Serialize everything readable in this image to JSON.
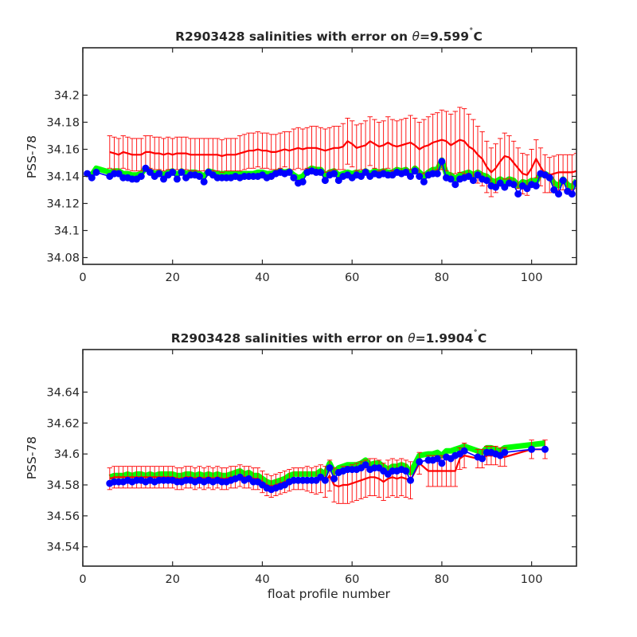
{
  "chart_data": [
    {
      "type": "line",
      "title": "R2903428 salinities with error on θ=9.599˚C",
      "title_parts": {
        "pre": "R2903428 salinities with error on ",
        "theta": "θ",
        "post": "=9.599",
        "deg": "˚",
        "unit": "C"
      },
      "xlabel": "",
      "ylabel": "PSS-78",
      "xlim": [
        0,
        110
      ],
      "ylim": [
        34.075,
        34.235
      ],
      "xticks": [
        0,
        20,
        40,
        60,
        80,
        100
      ],
      "xtick_labels": [
        "0",
        "20",
        "40",
        "60",
        "80",
        "100"
      ],
      "yticks": [
        34.08,
        34.1,
        34.12,
        34.14,
        34.16,
        34.18,
        34.2
      ],
      "ytick_labels": [
        "34.08",
        "34.1",
        "34.12",
        "34.14",
        "34.16",
        "34.18",
        "34.2"
      ],
      "grid": false,
      "colors": {
        "calibrated": "#00ff00",
        "reference": "#ff0000",
        "float": "#0000ff",
        "axis": "#262626"
      },
      "float_x": [
        1,
        2,
        3,
        6,
        7,
        8,
        9,
        10,
        11,
        12,
        13,
        14,
        15,
        16,
        17,
        18,
        19,
        20,
        21,
        22,
        23,
        24,
        25,
        26,
        27,
        28,
        29,
        30,
        31,
        32,
        33,
        34,
        35,
        36,
        37,
        38,
        39,
        40,
        41,
        42,
        43,
        44,
        45,
        46,
        47,
        48,
        49,
        50,
        51,
        52,
        53,
        54,
        55,
        56,
        57,
        58,
        59,
        60,
        61,
        62,
        63,
        64,
        65,
        66,
        67,
        68,
        69,
        70,
        71,
        72,
        73,
        74,
        75,
        76,
        77,
        78,
        79,
        80,
        81,
        82,
        83,
        84,
        85,
        86,
        87,
        88,
        89,
        90,
        91,
        92,
        93,
        94,
        95,
        96,
        97,
        98,
        99,
        100,
        101,
        102,
        103,
        104,
        105,
        106,
        107,
        108,
        109,
        110
      ],
      "float_y": [
        34.142,
        34.139,
        34.143,
        34.14,
        34.142,
        34.142,
        34.139,
        34.139,
        34.138,
        34.138,
        34.14,
        34.146,
        34.143,
        34.14,
        34.142,
        34.138,
        34.141,
        34.143,
        34.138,
        34.143,
        34.139,
        34.141,
        34.141,
        34.14,
        34.136,
        34.143,
        34.141,
        34.139,
        34.139,
        34.139,
        34.139,
        34.14,
        34.139,
        34.14,
        34.14,
        34.14,
        34.14,
        34.141,
        34.139,
        34.14,
        34.142,
        34.143,
        34.142,
        34.143,
        34.139,
        34.135,
        34.136,
        34.143,
        34.144,
        34.143,
        34.143,
        34.137,
        34.141,
        34.142,
        34.137,
        34.14,
        34.141,
        34.139,
        34.141,
        34.14,
        34.143,
        34.14,
        34.142,
        34.141,
        34.142,
        34.141,
        34.141,
        34.143,
        34.142,
        34.143,
        34.14,
        34.144,
        34.14,
        34.136,
        34.141,
        34.142,
        34.142,
        34.151,
        34.139,
        34.138,
        34.134,
        34.138,
        34.139,
        34.14,
        34.137,
        34.141,
        34.138,
        34.137,
        34.133,
        34.132,
        34.135,
        34.132,
        34.135,
        34.134,
        34.127,
        34.133,
        34.131,
        34.134,
        34.133,
        34.142,
        34.141,
        34.139,
        34.13,
        34.127,
        34.137,
        34.129,
        34.127,
        34.135,
        34.138
      ],
      "calibrated_y": [
        34.142,
        34.141,
        34.146,
        34.143,
        34.144,
        34.144,
        34.142,
        34.142,
        34.141,
        34.141,
        34.142,
        34.146,
        34.144,
        34.142,
        34.143,
        34.141,
        34.143,
        34.144,
        34.141,
        34.144,
        34.142,
        34.143,
        34.143,
        34.142,
        34.14,
        34.144,
        34.143,
        34.142,
        34.142,
        34.142,
        34.142,
        34.142,
        34.142,
        34.142,
        34.142,
        34.142,
        34.143,
        34.143,
        34.142,
        34.142,
        34.143,
        34.144,
        34.143,
        34.144,
        34.141,
        34.139,
        34.14,
        34.144,
        34.146,
        34.145,
        34.145,
        34.141,
        34.143,
        34.144,
        34.141,
        34.142,
        34.143,
        34.142,
        34.143,
        34.142,
        34.144,
        34.142,
        34.144,
        34.143,
        34.144,
        34.143,
        34.143,
        34.145,
        34.144,
        34.145,
        34.142,
        34.146,
        34.143,
        34.14,
        34.143,
        34.145,
        34.145,
        34.152,
        34.142,
        34.141,
        34.138,
        34.141,
        34.142,
        34.143,
        34.141,
        34.143,
        34.141,
        34.14,
        34.137,
        34.136,
        34.138,
        34.136,
        34.138,
        34.137,
        34.133,
        34.136,
        34.135,
        34.137,
        34.136,
        34.142,
        34.142,
        34.14,
        34.135,
        34.133,
        34.138,
        34.134,
        34.132,
        34.137,
        34.139
      ],
      "reference_x": [
        6,
        7,
        8,
        9,
        10,
        11,
        12,
        13,
        14,
        15,
        16,
        17,
        18,
        19,
        20,
        21,
        22,
        23,
        24,
        25,
        26,
        27,
        28,
        29,
        30,
        31,
        32,
        33,
        34,
        35,
        36,
        37,
        38,
        39,
        40,
        41,
        42,
        43,
        44,
        45,
        46,
        47,
        48,
        49,
        50,
        51,
        52,
        53,
        54,
        55,
        56,
        57,
        58,
        59,
        60,
        61,
        62,
        63,
        64,
        65,
        66,
        67,
        68,
        69,
        70,
        71,
        72,
        73,
        74,
        75,
        76,
        77,
        78,
        79,
        80,
        81,
        82,
        83,
        84,
        85,
        86,
        87,
        88,
        89,
        90,
        91,
        92,
        93,
        94,
        95,
        96,
        97,
        98,
        99,
        100,
        101,
        102,
        103,
        104,
        105,
        106,
        107,
        108,
        109,
        110
      ],
      "reference_y": [
        34.158,
        34.157,
        34.156,
        34.158,
        34.157,
        34.156,
        34.156,
        34.156,
        34.158,
        34.158,
        34.157,
        34.157,
        34.156,
        34.157,
        34.156,
        34.157,
        34.157,
        34.157,
        34.156,
        34.156,
        34.156,
        34.156,
        34.156,
        34.156,
        34.156,
        34.155,
        34.156,
        34.156,
        34.156,
        34.157,
        34.158,
        34.159,
        34.159,
        34.16,
        34.159,
        34.159,
        34.158,
        34.158,
        34.159,
        34.16,
        34.159,
        34.16,
        34.161,
        34.16,
        34.161,
        34.161,
        34.161,
        34.16,
        34.159,
        34.16,
        34.161,
        34.161,
        34.162,
        34.166,
        34.164,
        34.161,
        34.162,
        34.163,
        34.166,
        34.164,
        34.162,
        34.163,
        34.165,
        34.163,
        34.162,
        34.163,
        34.164,
        34.165,
        34.163,
        34.16,
        34.162,
        34.163,
        34.165,
        34.166,
        34.167,
        34.166,
        34.163,
        34.165,
        34.167,
        34.166,
        34.162,
        34.16,
        34.156,
        34.153,
        34.147,
        34.143,
        34.146,
        34.151,
        34.155,
        34.154,
        34.15,
        34.146,
        34.142,
        34.141,
        34.146,
        34.153,
        34.147,
        34.142,
        34.141,
        34.142,
        34.143,
        34.143,
        34.143,
        34.143,
        34.144
      ],
      "error_halfwidth": [
        0.012,
        0.012,
        0.012,
        0.012,
        0.012,
        0.012,
        0.012,
        0.012,
        0.012,
        0.012,
        0.012,
        0.012,
        0.012,
        0.012,
        0.012,
        0.012,
        0.012,
        0.012,
        0.012,
        0.012,
        0.012,
        0.012,
        0.012,
        0.012,
        0.012,
        0.012,
        0.012,
        0.012,
        0.012,
        0.013,
        0.013,
        0.013,
        0.013,
        0.013,
        0.013,
        0.013,
        0.013,
        0.013,
        0.013,
        0.013,
        0.014,
        0.015,
        0.015,
        0.015,
        0.015,
        0.016,
        0.016,
        0.016,
        0.016,
        0.016,
        0.016,
        0.016,
        0.017,
        0.017,
        0.017,
        0.017,
        0.017,
        0.018,
        0.018,
        0.018,
        0.018,
        0.018,
        0.019,
        0.019,
        0.019,
        0.019,
        0.019,
        0.02,
        0.02,
        0.02,
        0.02,
        0.021,
        0.021,
        0.021,
        0.022,
        0.022,
        0.023,
        0.023,
        0.024,
        0.024,
        0.024,
        0.022,
        0.021,
        0.02,
        0.019,
        0.018,
        0.018,
        0.017,
        0.017,
        0.016,
        0.016,
        0.015,
        0.015,
        0.015,
        0.014,
        0.014,
        0.014,
        0.014,
        0.013,
        0.013,
        0.013,
        0.013,
        0.013,
        0.013,
        0.013
      ]
    },
    {
      "type": "line",
      "title": "R2903428 salinities with error on θ=1.9904˚C",
      "title_parts": {
        "pre": "R2903428 salinities with error on ",
        "theta": "θ",
        "post": "=1.9904",
        "deg": "˚",
        "unit": "C"
      },
      "xlabel": "float profile number",
      "ylabel": "PSS-78",
      "xlim": [
        0,
        110
      ],
      "ylim": [
        34.5275,
        34.6675
      ],
      "xticks": [
        0,
        20,
        40,
        60,
        80,
        100
      ],
      "xtick_labels": [
        "0",
        "20",
        "40",
        "60",
        "80",
        "100"
      ],
      "yticks": [
        34.54,
        34.56,
        34.58,
        34.6,
        34.62,
        34.64
      ],
      "ytick_labels": [
        "34.54",
        "34.56",
        "34.58",
        "34.6",
        "34.62",
        "34.64"
      ],
      "grid": false,
      "colors": {
        "calibrated": "#00ff00",
        "reference": "#ff0000",
        "float": "#0000ff",
        "axis": "#262626"
      },
      "float_x": [
        6,
        7,
        8,
        9,
        10,
        11,
        12,
        13,
        14,
        15,
        16,
        17,
        18,
        19,
        20,
        21,
        22,
        23,
        24,
        25,
        26,
        27,
        28,
        29,
        30,
        31,
        32,
        33,
        34,
        35,
        36,
        37,
        38,
        39,
        40,
        41,
        42,
        43,
        44,
        45,
        46,
        47,
        48,
        49,
        50,
        51,
        52,
        53,
        54,
        55,
        56,
        57,
        58,
        59,
        60,
        61,
        62,
        63,
        64,
        65,
        66,
        67,
        68,
        69,
        70,
        71,
        72,
        73,
        75,
        77,
        78,
        79,
        80,
        81,
        82,
        83,
        84,
        85,
        88,
        89,
        90,
        91,
        92,
        93,
        94,
        100,
        103
      ],
      "float_y": [
        34.581,
        34.582,
        34.582,
        34.582,
        34.583,
        34.582,
        34.583,
        34.583,
        34.582,
        34.583,
        34.582,
        34.583,
        34.583,
        34.583,
        34.583,
        34.582,
        34.582,
        34.583,
        34.583,
        34.582,
        34.583,
        34.582,
        34.583,
        34.582,
        34.583,
        34.582,
        34.582,
        34.583,
        34.584,
        34.585,
        34.583,
        34.584,
        34.582,
        34.582,
        34.58,
        34.578,
        34.577,
        34.578,
        34.579,
        34.58,
        34.582,
        34.583,
        34.583,
        34.583,
        34.583,
        34.583,
        34.583,
        34.585,
        34.583,
        34.591,
        34.584,
        34.588,
        34.589,
        34.59,
        34.59,
        34.59,
        34.591,
        34.593,
        34.59,
        34.591,
        34.591,
        34.589,
        34.587,
        34.589,
        34.589,
        34.59,
        34.589,
        34.583,
        34.595,
        34.596,
        34.596,
        34.597,
        34.594,
        34.598,
        34.597,
        34.599,
        34.6,
        34.602,
        34.598,
        34.597,
        34.601,
        34.601,
        34.6,
        34.599,
        34.601,
        34.603,
        34.603
      ],
      "calibrated_y": [
        34.585,
        34.586,
        34.586,
        34.586,
        34.587,
        34.586,
        34.587,
        34.587,
        34.586,
        34.587,
        34.586,
        34.587,
        34.587,
        34.587,
        34.587,
        34.586,
        34.586,
        34.587,
        34.587,
        34.586,
        34.587,
        34.586,
        34.587,
        34.586,
        34.587,
        34.586,
        34.586,
        34.587,
        34.588,
        34.589,
        34.587,
        34.588,
        34.586,
        34.586,
        34.584,
        34.582,
        34.581,
        34.582,
        34.583,
        34.584,
        34.586,
        34.587,
        34.587,
        34.587,
        34.587,
        34.587,
        34.587,
        34.589,
        34.587,
        34.594,
        34.588,
        34.591,
        34.592,
        34.593,
        34.593,
        34.593,
        34.594,
        34.596,
        34.593,
        34.594,
        34.594,
        34.592,
        34.59,
        34.592,
        34.592,
        34.593,
        34.592,
        34.588,
        34.599,
        34.6,
        34.6,
        34.601,
        34.599,
        34.602,
        34.602,
        34.603,
        34.604,
        34.605,
        34.602,
        34.601,
        34.604,
        34.604,
        34.603,
        34.602,
        34.604,
        34.606,
        34.607
      ],
      "reference_y": [
        34.584,
        34.585,
        34.585,
        34.585,
        34.585,
        34.585,
        34.585,
        34.585,
        34.585,
        34.585,
        34.585,
        34.585,
        34.585,
        34.585,
        34.585,
        34.584,
        34.584,
        34.585,
        34.585,
        34.584,
        34.585,
        34.584,
        34.585,
        34.584,
        34.585,
        34.584,
        34.584,
        34.585,
        34.585,
        34.586,
        34.585,
        34.585,
        34.584,
        34.584,
        34.582,
        34.58,
        34.579,
        34.58,
        34.581,
        34.582,
        34.583,
        34.584,
        34.584,
        34.584,
        34.584,
        34.583,
        34.583,
        34.584,
        34.582,
        34.586,
        34.58,
        34.579,
        34.58,
        34.58,
        34.581,
        34.582,
        34.583,
        34.584,
        34.585,
        34.585,
        34.584,
        34.582,
        34.584,
        34.585,
        34.584,
        34.585,
        34.584,
        34.583,
        34.594,
        34.589,
        34.589,
        34.589,
        34.589,
        34.589,
        34.589,
        34.589,
        34.597,
        34.599,
        34.597,
        34.597,
        34.599,
        34.599,
        34.599,
        34.598,
        34.598,
        34.603,
        34.603
      ],
      "error_halfwidth": [
        0.007,
        0.007,
        0.007,
        0.007,
        0.007,
        0.007,
        0.007,
        0.007,
        0.007,
        0.007,
        0.007,
        0.007,
        0.007,
        0.007,
        0.007,
        0.007,
        0.007,
        0.007,
        0.007,
        0.007,
        0.007,
        0.007,
        0.007,
        0.007,
        0.007,
        0.007,
        0.007,
        0.007,
        0.007,
        0.007,
        0.007,
        0.007,
        0.007,
        0.007,
        0.007,
        0.007,
        0.007,
        0.007,
        0.007,
        0.007,
        0.007,
        0.007,
        0.007,
        0.007,
        0.008,
        0.008,
        0.009,
        0.009,
        0.01,
        0.01,
        0.011,
        0.011,
        0.012,
        0.012,
        0.012,
        0.012,
        0.012,
        0.012,
        0.012,
        0.012,
        0.012,
        0.012,
        0.012,
        0.012,
        0.012,
        0.012,
        0.012,
        0.012,
        0.007,
        0.01,
        0.01,
        0.01,
        0.01,
        0.01,
        0.01,
        0.01,
        0.007,
        0.008,
        0.006,
        0.006,
        0.006,
        0.006,
        0.006,
        0.006,
        0.006,
        0.006,
        0.006
      ]
    }
  ]
}
